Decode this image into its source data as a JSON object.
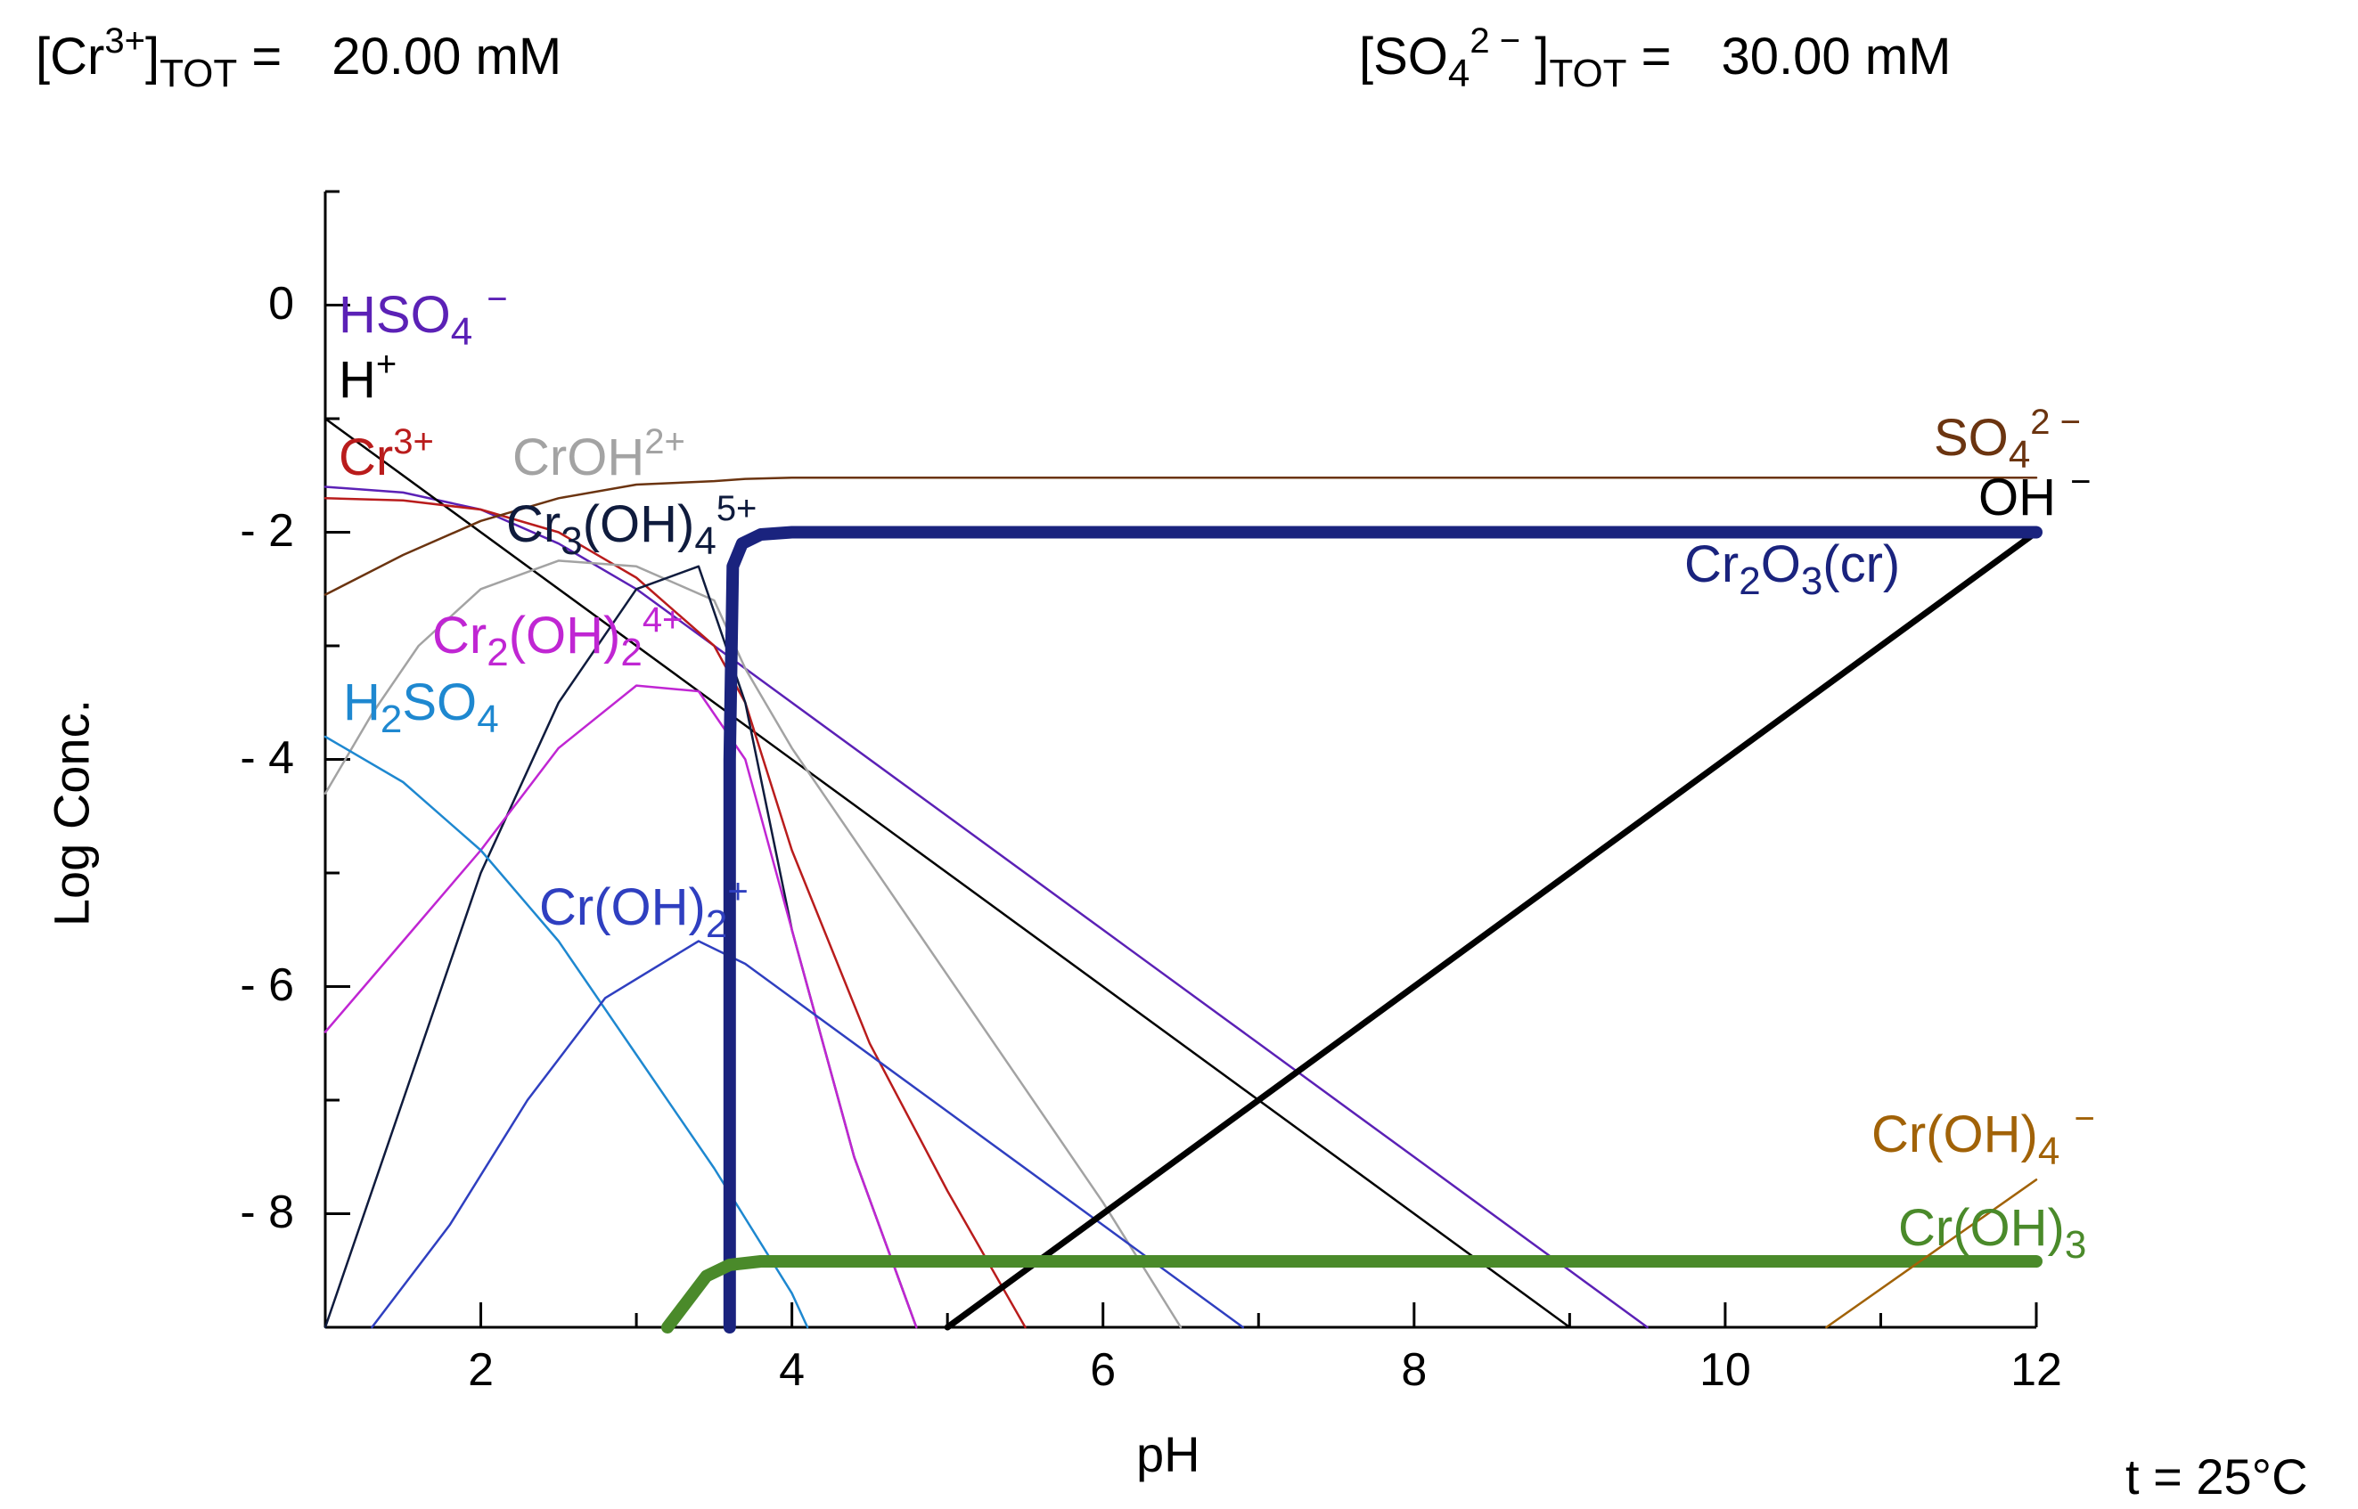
{
  "header": {
    "left": {
      "bracket_open": "[Cr",
      "charge": "3+",
      "bracket_close": "]",
      "sub": "TOT",
      "eq": " =",
      "value": "20.00 mM"
    },
    "right": {
      "bracket_open": "[SO",
      "sub4": "4",
      "charge": "2 −",
      "bracket_close": " ]",
      "sub": "TOT",
      "eq": " =",
      "value": "30.00 mM"
    }
  },
  "footer": {
    "temperature": "t = 25°C"
  },
  "colors": {
    "HSO4": "#5b21b6",
    "H": "#000000",
    "Cr3": "#b91c1c",
    "CrOH2": "#a3a3a3",
    "Cr3OH4": "#0f1b3d",
    "Cr2OH2": "#c026d3",
    "H2SO4": "#1e88d0",
    "CrOH2p": "#2f3fc0",
    "SO4": "#6b3410",
    "OH": "#000000",
    "Cr2O3": "#1a237e",
    "CrOH4": "#a16207",
    "CrOH3": "#4a8a2a"
  },
  "chart_data": {
    "type": "line",
    "title": "",
    "xlabel": "pH",
    "ylabel": "Log Conc.",
    "xlim": [
      1,
      12
    ],
    "ylim": [
      -9,
      1
    ],
    "xticks": [
      2,
      4,
      6,
      8,
      10,
      12
    ],
    "xtick_labels": [
      "2",
      "4",
      "6",
      "8",
      "10",
      "12"
    ],
    "yticks": [
      0,
      -2,
      -4,
      -6,
      -8
    ],
    "ytick_labels": [
      "0",
      "- 2",
      "- 4",
      "- 6",
      "- 8"
    ],
    "series": [
      {
        "name": "HSO4-",
        "color_key": "HSO4",
        "width": "thin",
        "x": [
          1,
          1.5,
          2,
          2.5,
          3,
          3.5,
          3.7,
          4,
          5,
          6,
          7,
          8,
          9,
          9.5
        ],
        "y": [
          -1.6,
          -1.65,
          -1.8,
          -2.1,
          -2.5,
          -3.0,
          -3.2,
          -3.5,
          -4.5,
          -5.5,
          -6.5,
          -7.5,
          -8.5,
          -9.0
        ]
      },
      {
        "name": "H+",
        "color_key": "H",
        "width": "thin",
        "x": [
          1,
          9
        ],
        "y": [
          -1,
          -9
        ]
      },
      {
        "name": "Cr3+",
        "color_key": "Cr3",
        "width": "thin",
        "x": [
          1,
          1.5,
          2,
          2.5,
          3,
          3.5,
          3.7,
          4,
          4.5,
          5,
          5.5
        ],
        "y": [
          -1.7,
          -1.72,
          -1.8,
          -2.0,
          -2.4,
          -3.0,
          -3.5,
          -4.8,
          -6.5,
          -7.8,
          -9.0
        ]
      },
      {
        "name": "CrOH2+",
        "color_key": "CrOH2",
        "width": "thin",
        "x": [
          1,
          1.3,
          1.6,
          2,
          2.5,
          3,
          3.5,
          3.7,
          4,
          4.5,
          5,
          5.5,
          6,
          6.5
        ],
        "y": [
          -4.3,
          -3.6,
          -3.0,
          -2.5,
          -2.25,
          -2.3,
          -2.6,
          -3.2,
          -3.9,
          -4.9,
          -5.9,
          -6.9,
          -7.9,
          -9.0
        ]
      },
      {
        "name": "Cr3(OH)4 5+",
        "color_key": "Cr3OH4",
        "width": "thin",
        "x": [
          1,
          1.5,
          2,
          2.5,
          3,
          3.4,
          3.7,
          4,
          4.4,
          4.8
        ],
        "y": [
          -9.0,
          -7.0,
          -5.0,
          -3.5,
          -2.5,
          -2.3,
          -3.5,
          -5.5,
          -7.5,
          -9.0
        ]
      },
      {
        "name": "Cr2(OH)2 4+",
        "color_key": "Cr2OH2",
        "width": "thin",
        "x": [
          1,
          1.5,
          2,
          2.5,
          3,
          3.4,
          3.7,
          4,
          4.4,
          4.8
        ],
        "y": [
          -6.4,
          -5.6,
          -4.8,
          -3.9,
          -3.35,
          -3.4,
          -4.0,
          -5.5,
          -7.5,
          -9.0
        ]
      },
      {
        "name": "H2SO4",
        "color_key": "H2SO4",
        "width": "thin",
        "x": [
          1,
          1.5,
          2,
          2.5,
          3,
          3.5,
          4,
          4.1
        ],
        "y": [
          -3.8,
          -4.2,
          -4.8,
          -5.6,
          -6.6,
          -7.6,
          -8.7,
          -9.0
        ]
      },
      {
        "name": "Cr(OH)2+",
        "color_key": "CrOH2p",
        "width": "thin",
        "x": [
          1.3,
          1.8,
          2.3,
          2.8,
          3.4,
          3.7,
          4,
          5,
          6,
          6.9
        ],
        "y": [
          -9.0,
          -8.1,
          -7.0,
          -6.1,
          -5.6,
          -5.8,
          -6.1,
          -7.1,
          -8.1,
          -9.0
        ]
      },
      {
        "name": "SO4 2-",
        "color_key": "SO4",
        "width": "thin",
        "x": [
          1,
          1.5,
          2,
          2.5,
          3,
          3.5,
          3.7,
          4,
          6,
          8,
          10,
          12
        ],
        "y": [
          -2.55,
          -2.2,
          -1.9,
          -1.7,
          -1.58,
          -1.55,
          -1.53,
          -1.52,
          -1.52,
          -1.52,
          -1.52,
          -1.52
        ]
      },
      {
        "name": "OH-",
        "color_key": "OH",
        "width": "thick",
        "x": [
          5,
          12
        ],
        "y": [
          -9,
          -2
        ]
      },
      {
        "name": "Cr2O3(cr)",
        "color_key": "Cr2O3",
        "width": "extra",
        "x": [
          3.6,
          3.6,
          3.62,
          3.68,
          3.8,
          4,
          6,
          8,
          10,
          12
        ],
        "y": [
          -9.0,
          -4.0,
          -2.3,
          -2.1,
          -2.02,
          -2.0,
          -2.0,
          -2.0,
          -2.0,
          -2.0
        ]
      },
      {
        "name": "Cr(OH)3",
        "color_key": "CrOH3",
        "width": "extra",
        "x": [
          3.2,
          3.45,
          3.6,
          3.8,
          4,
          6,
          8,
          10,
          12
        ],
        "y": [
          -9.0,
          -8.55,
          -8.45,
          -8.42,
          -8.42,
          -8.42,
          -8.42,
          -8.42,
          -8.42
        ]
      },
      {
        "name": "Cr(OH)4-",
        "color_key": "CrOH4",
        "width": "thin",
        "x": [
          10.65,
          12
        ],
        "y": [
          -9,
          -7.7
        ]
      }
    ],
    "species_labels": [
      {
        "key": "HSO4",
        "parts": [
          [
            "t",
            "HSO"
          ],
          [
            "sub",
            "4"
          ],
          [
            "t",
            " "
          ],
          [
            "sup",
            "−"
          ]
        ]
      },
      {
        "key": "H",
        "parts": [
          [
            "t",
            "H"
          ],
          [
            "sup",
            "+"
          ]
        ]
      },
      {
        "key": "Cr3",
        "parts": [
          [
            "t",
            "Cr"
          ],
          [
            "sup",
            "3+"
          ]
        ]
      },
      {
        "key": "CrOH2",
        "parts": [
          [
            "t",
            "CrOH"
          ],
          [
            "sup",
            "2+"
          ]
        ]
      },
      {
        "key": "Cr3OH4",
        "parts": [
          [
            "t",
            "Cr"
          ],
          [
            "sub",
            "3"
          ],
          [
            "t",
            "(OH)"
          ],
          [
            "sub",
            "4"
          ],
          [
            "sup",
            "5+"
          ]
        ]
      },
      {
        "key": "Cr2OH2",
        "parts": [
          [
            "t",
            "Cr"
          ],
          [
            "sub",
            "2"
          ],
          [
            "t",
            "(OH)"
          ],
          [
            "sub",
            "2"
          ],
          [
            "sup",
            "4+"
          ]
        ]
      },
      {
        "key": "H2SO4",
        "parts": [
          [
            "t",
            "H"
          ],
          [
            "sub",
            "2"
          ],
          [
            "t",
            "SO"
          ],
          [
            "sub",
            "4"
          ]
        ]
      },
      {
        "key": "CrOH2p",
        "parts": [
          [
            "t",
            "Cr(OH)"
          ],
          [
            "sub",
            "2"
          ],
          [
            "sup",
            "+"
          ]
        ]
      },
      {
        "key": "SO4",
        "parts": [
          [
            "t",
            "SO"
          ],
          [
            "sub",
            "4"
          ],
          [
            "sup",
            "2 −"
          ]
        ]
      },
      {
        "key": "OH",
        "parts": [
          [
            "t",
            "OH "
          ],
          [
            "sup",
            "−"
          ]
        ]
      },
      {
        "key": "Cr2O3",
        "parts": [
          [
            "t",
            "Cr"
          ],
          [
            "sub",
            "2"
          ],
          [
            "t",
            "O"
          ],
          [
            "sub",
            "3"
          ],
          [
            "t",
            "(cr)"
          ]
        ]
      },
      {
        "key": "CrOH4",
        "parts": [
          [
            "t",
            "Cr(OH)"
          ],
          [
            "sub",
            "4"
          ],
          [
            "t",
            " "
          ],
          [
            "sup",
            "−"
          ]
        ]
      },
      {
        "key": "CrOH3",
        "parts": [
          [
            "t",
            "Cr(OH)"
          ],
          [
            "sub",
            "3"
          ]
        ]
      }
    ]
  }
}
